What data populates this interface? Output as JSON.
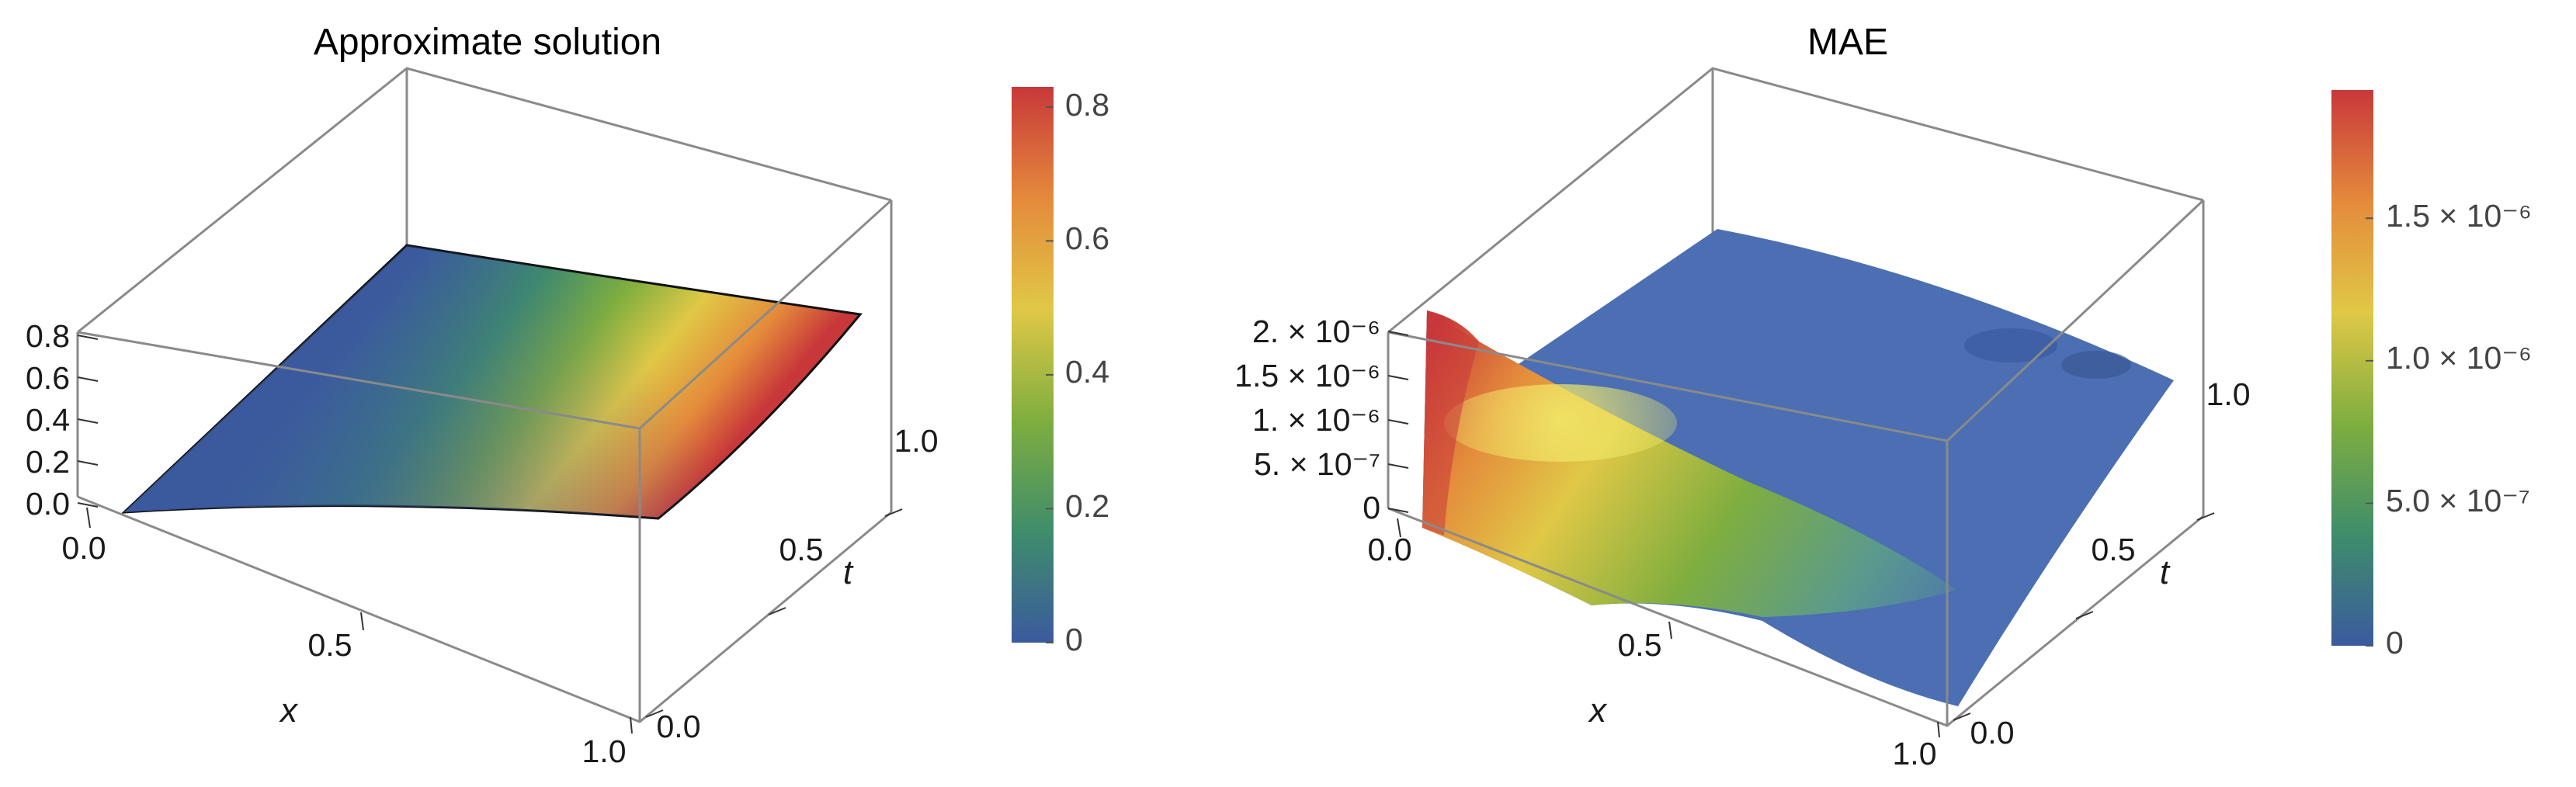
{
  "chart_data": [
    {
      "type": "surface3d",
      "title": "Approximate solution",
      "xlabel": "x",
      "ylabel": "t",
      "x_ticks": [
        "0.0",
        "0.5",
        "1.0"
      ],
      "t_ticks": [
        "0.0",
        "0.5",
        "1.0"
      ],
      "z_ticks": [
        "0.0",
        "0.2",
        "0.4",
        "0.6",
        "0.8"
      ],
      "xlim": [
        0,
        1
      ],
      "tlim": [
        0,
        1
      ],
      "zlim": [
        0,
        0.8
      ],
      "grid": false,
      "colorbar": {
        "min": 0,
        "max": 0.83,
        "ticks": [
          "0",
          "0.2",
          "0.4",
          "0.6",
          "0.8"
        ],
        "tick_values": [
          0,
          0.2,
          0.4,
          0.6,
          0.8
        ]
      },
      "colormap": [
        "#3b5a9e",
        "#3f8d6b",
        "#7fae3f",
        "#e0c846",
        "#e48a3b",
        "#c8383a"
      ],
      "corner_values": {
        "x0_t0": 0.0,
        "x1_t0": 0.82,
        "x0_t1": 0.0,
        "x1_t1": 0.35
      }
    },
    {
      "type": "surface3d",
      "title": "MAE",
      "xlabel": "x",
      "ylabel": "t",
      "x_ticks": [
        "0.0",
        "0.5",
        "1.0"
      ],
      "t_ticks": [
        "0.0",
        "0.5",
        "1.0"
      ],
      "z_ticks": [
        "0",
        "5. × 10⁻⁷",
        "1. × 10⁻⁶",
        "1.5 × 10⁻⁶",
        "2. × 10⁻⁶"
      ],
      "xlim": [
        0,
        1
      ],
      "tlim": [
        0,
        1
      ],
      "zlim": [
        0,
        2e-06
      ],
      "grid": false,
      "colorbar": {
        "min": 0,
        "max": 1.95e-06,
        "ticks": [
          "0",
          "5.0 × 10⁻⁷",
          "1.0 × 10⁻⁶",
          "1.5 × 10⁻⁶"
        ],
        "tick_values": [
          0,
          5e-07,
          1e-06,
          1.5e-06
        ]
      },
      "colormap": [
        "#3b5a9e",
        "#3f8d6b",
        "#7fae3f",
        "#e0c846",
        "#e48a3b",
        "#c8383a"
      ],
      "peak": {
        "x": 0.0,
        "t": 0.0,
        "value": 2e-06
      }
    }
  ]
}
